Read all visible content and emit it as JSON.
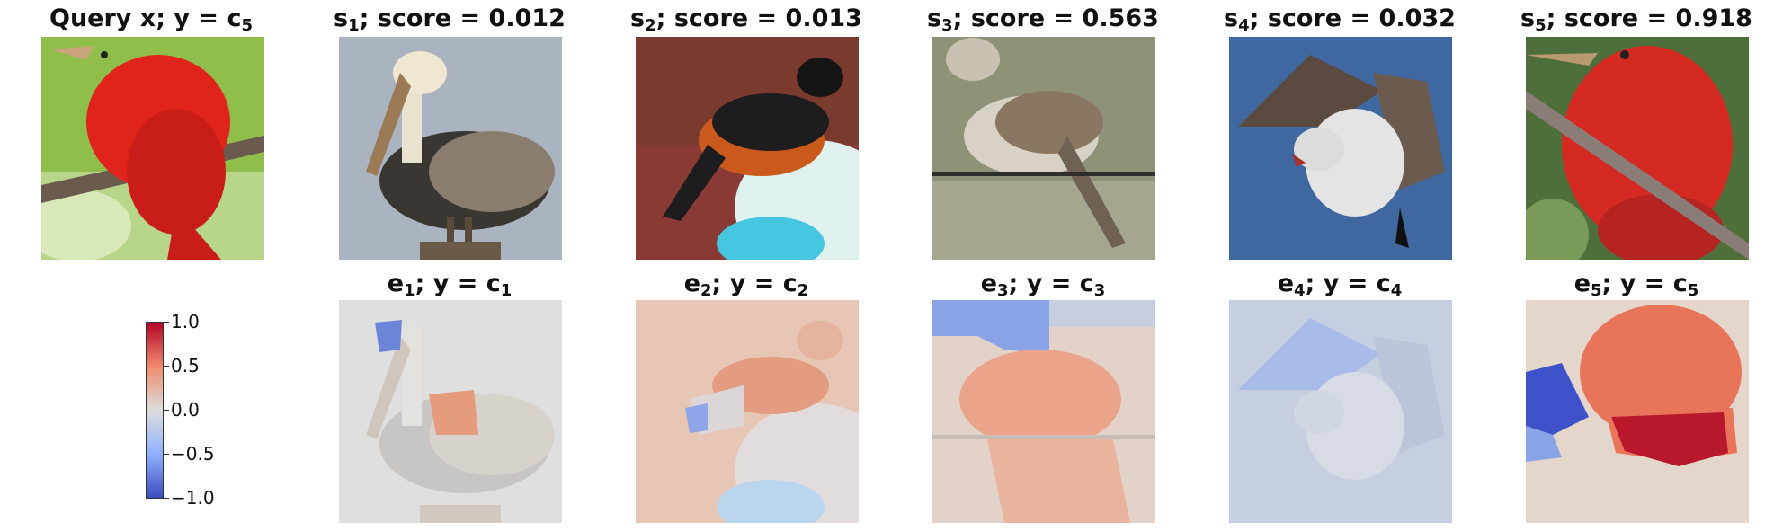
{
  "query": {
    "title_main": "Query x; y = c",
    "title_sub": "5"
  },
  "samples": [
    {
      "s_main": "s",
      "s_sub": "1",
      "s_score": "; score = 0.012",
      "e_main": "e",
      "e_sub": "1",
      "e_rest": "; y = c",
      "e_csub": "1"
    },
    {
      "s_main": "s",
      "s_sub": "2",
      "s_score": "; score = 0.013",
      "e_main": "e",
      "e_sub": "2",
      "e_rest": "; y = c",
      "e_csub": "2"
    },
    {
      "s_main": "s",
      "s_sub": "3",
      "s_score": "; score = 0.563",
      "e_main": "e",
      "e_sub": "3",
      "e_rest": "; y = c",
      "e_csub": "3"
    },
    {
      "s_main": "s",
      "s_sub": "4",
      "s_score": "; score = 0.032",
      "e_main": "e",
      "e_sub": "4",
      "e_rest": "; y = c",
      "e_csub": "4"
    },
    {
      "s_main": "s",
      "s_sub": "5",
      "s_score": "; score = 0.918",
      "e_main": "e",
      "e_sub": "5",
      "e_rest": "; y = c",
      "e_csub": "5"
    }
  ],
  "colorbar": {
    "ticks": [
      "1.0",
      "0.5",
      "0.0",
      "−0.5",
      "−1.0"
    ],
    "colormap": "coolwarm",
    "colors": {
      "high": "#b40426",
      "mid": "#dddddd",
      "low": "#3b4cc0"
    }
  }
}
